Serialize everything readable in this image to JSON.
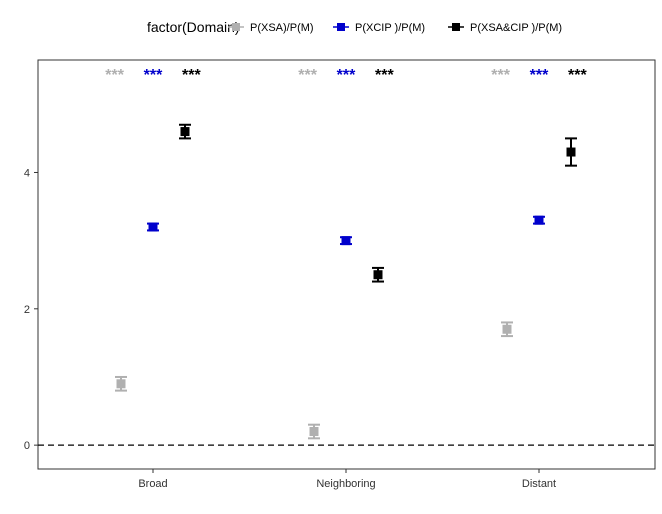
{
  "chart_data": {
    "type": "scatter",
    "title": "",
    "xlabel": "",
    "ylabel": "",
    "legend": {
      "title": "factor(Domain)",
      "position": "top"
    },
    "categories": [
      "Broad",
      "Neighboring",
      "Distant"
    ],
    "ylim": [
      -0.35,
      5.65
    ],
    "yticks": [
      0,
      2,
      4
    ],
    "reference_line": {
      "y": 0,
      "style": "dashed"
    },
    "grid": false,
    "series": [
      {
        "name": "P(XSA)/P(M)",
        "color": "#b0b0b0",
        "values": [
          0.9,
          0.2,
          1.7
        ],
        "error_low": [
          0.8,
          0.1,
          1.6
        ],
        "error_high": [
          1.0,
          0.3,
          1.8
        ],
        "significance": [
          "***",
          "***",
          "***"
        ]
      },
      {
        "name": "P(XCIP )/P(M)",
        "color": "#0000cc",
        "values": [
          3.2,
          3.0,
          3.3
        ],
        "error_low": [
          3.15,
          2.95,
          3.25
        ],
        "error_high": [
          3.25,
          3.05,
          3.35
        ],
        "significance": [
          "***",
          "***",
          "***"
        ]
      },
      {
        "name": "P(XSA&CIP )/P(M)",
        "color": "#000000",
        "values": [
          4.6,
          2.5,
          4.3
        ],
        "error_low": [
          4.5,
          2.4,
          4.1
        ],
        "error_high": [
          4.7,
          2.6,
          4.5
        ],
        "significance": [
          "***",
          "***",
          "***"
        ]
      }
    ]
  }
}
